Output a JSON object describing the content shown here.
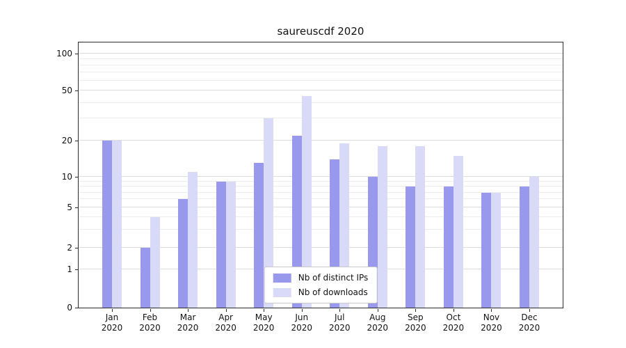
{
  "title": "saureuscdf 2020",
  "colors": {
    "ips": "#9898ec",
    "downloads": "#d9d9f8",
    "grid_major": "#dcdcdc",
    "grid_minor": "#ececec",
    "axis": "#2a2a2a"
  },
  "legend": {
    "items": [
      {
        "label": "Nb of distinct IPs",
        "color_key": "ips"
      },
      {
        "label": "Nb of downloads",
        "color_key": "downloads"
      }
    ]
  },
  "chart_data": {
    "type": "bar",
    "title": "saureuscdf 2020",
    "categories": [
      "Jan",
      "Feb",
      "Mar",
      "Apr",
      "May",
      "Jun",
      "Jul",
      "Aug",
      "Sep",
      "Oct",
      "Nov",
      "Dec"
    ],
    "year": "2020",
    "series": [
      {
        "name": "Nb of distinct IPs",
        "values": [
          20,
          2,
          6,
          9,
          13,
          22,
          14,
          10,
          8,
          8,
          7,
          8
        ]
      },
      {
        "name": "Nb of downloads",
        "values": [
          20,
          4,
          11,
          9,
          30,
          45,
          19,
          18,
          18,
          15,
          7,
          10
        ]
      }
    ],
    "yscale": "symlog",
    "yticks": [
      0,
      1,
      2,
      5,
      10,
      20,
      50,
      100
    ],
    "ylim": [
      0,
      130
    ],
    "xlabel": "",
    "ylabel": "",
    "grid": true,
    "legend_position": "lower center"
  }
}
